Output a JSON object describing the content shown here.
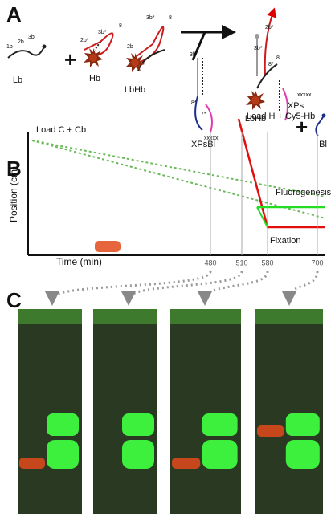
{
  "panel_a": {
    "label": "A",
    "molecules": [
      "Lb",
      "Hb",
      "LbHb",
      "XPsBl",
      "LbHb",
      "XPs",
      "Bl"
    ],
    "domains": [
      "1b",
      "2b",
      "3b",
      "2b*",
      "3b*",
      "8",
      "2b",
      "3b*",
      "8",
      "3b",
      "8*",
      "7*",
      "xxxxx",
      "2b*",
      "3b*",
      "8",
      "8*",
      "xxxxx"
    ]
  },
  "panel_b": {
    "label": "B",
    "y_axis_label": "Position (cm)",
    "x_axis_label": "Time (min)",
    "annotations": [
      "Load C + Cb",
      "Load H + Cy5-Hb",
      "Fluorogenesis",
      "Fixation"
    ],
    "time_points": [
      480,
      510,
      580,
      700
    ]
  },
  "panel_c": {
    "label": "C"
  }
}
